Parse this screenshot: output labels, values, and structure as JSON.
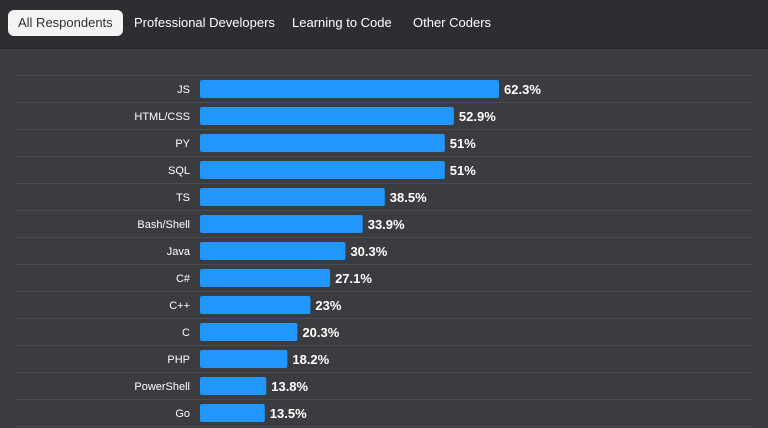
{
  "tabs": [
    {
      "label": "All Respondents",
      "active": true
    },
    {
      "label": "Professional Developers",
      "active": false
    },
    {
      "label": "Learning to Code",
      "active": false
    },
    {
      "label": "Other Coders",
      "active": false
    }
  ],
  "colors": {
    "bar": "#2196ff",
    "background": "#3a3c3f",
    "tabbar": "#2d2e31",
    "gridline": "#4a4c50",
    "label": "#ffffff"
  },
  "chart_data": {
    "type": "bar",
    "orientation": "horizontal",
    "categories": [
      "JS",
      "HTML/CSS",
      "PY",
      "SQL",
      "TS",
      "Bash/Shell",
      "Java",
      "C#",
      "C++",
      "C",
      "PHP",
      "PowerShell",
      "Go"
    ],
    "values": [
      62.3,
      52.9,
      51,
      51,
      38.5,
      33.9,
      30.3,
      27.1,
      23,
      20.3,
      18.2,
      13.8,
      13.5
    ],
    "value_labels": [
      "62.3%",
      "52.9%",
      "51%",
      "51%",
      "38.5%",
      "33.9%",
      "30.3%",
      "27.1%",
      "23%",
      "20.3%",
      "18.2%",
      "13.8%",
      "13.5%"
    ],
    "title": "",
    "xlabel": "",
    "ylabel": "",
    "xlim": [
      0,
      100
    ],
    "grid": true,
    "legend": "none"
  }
}
